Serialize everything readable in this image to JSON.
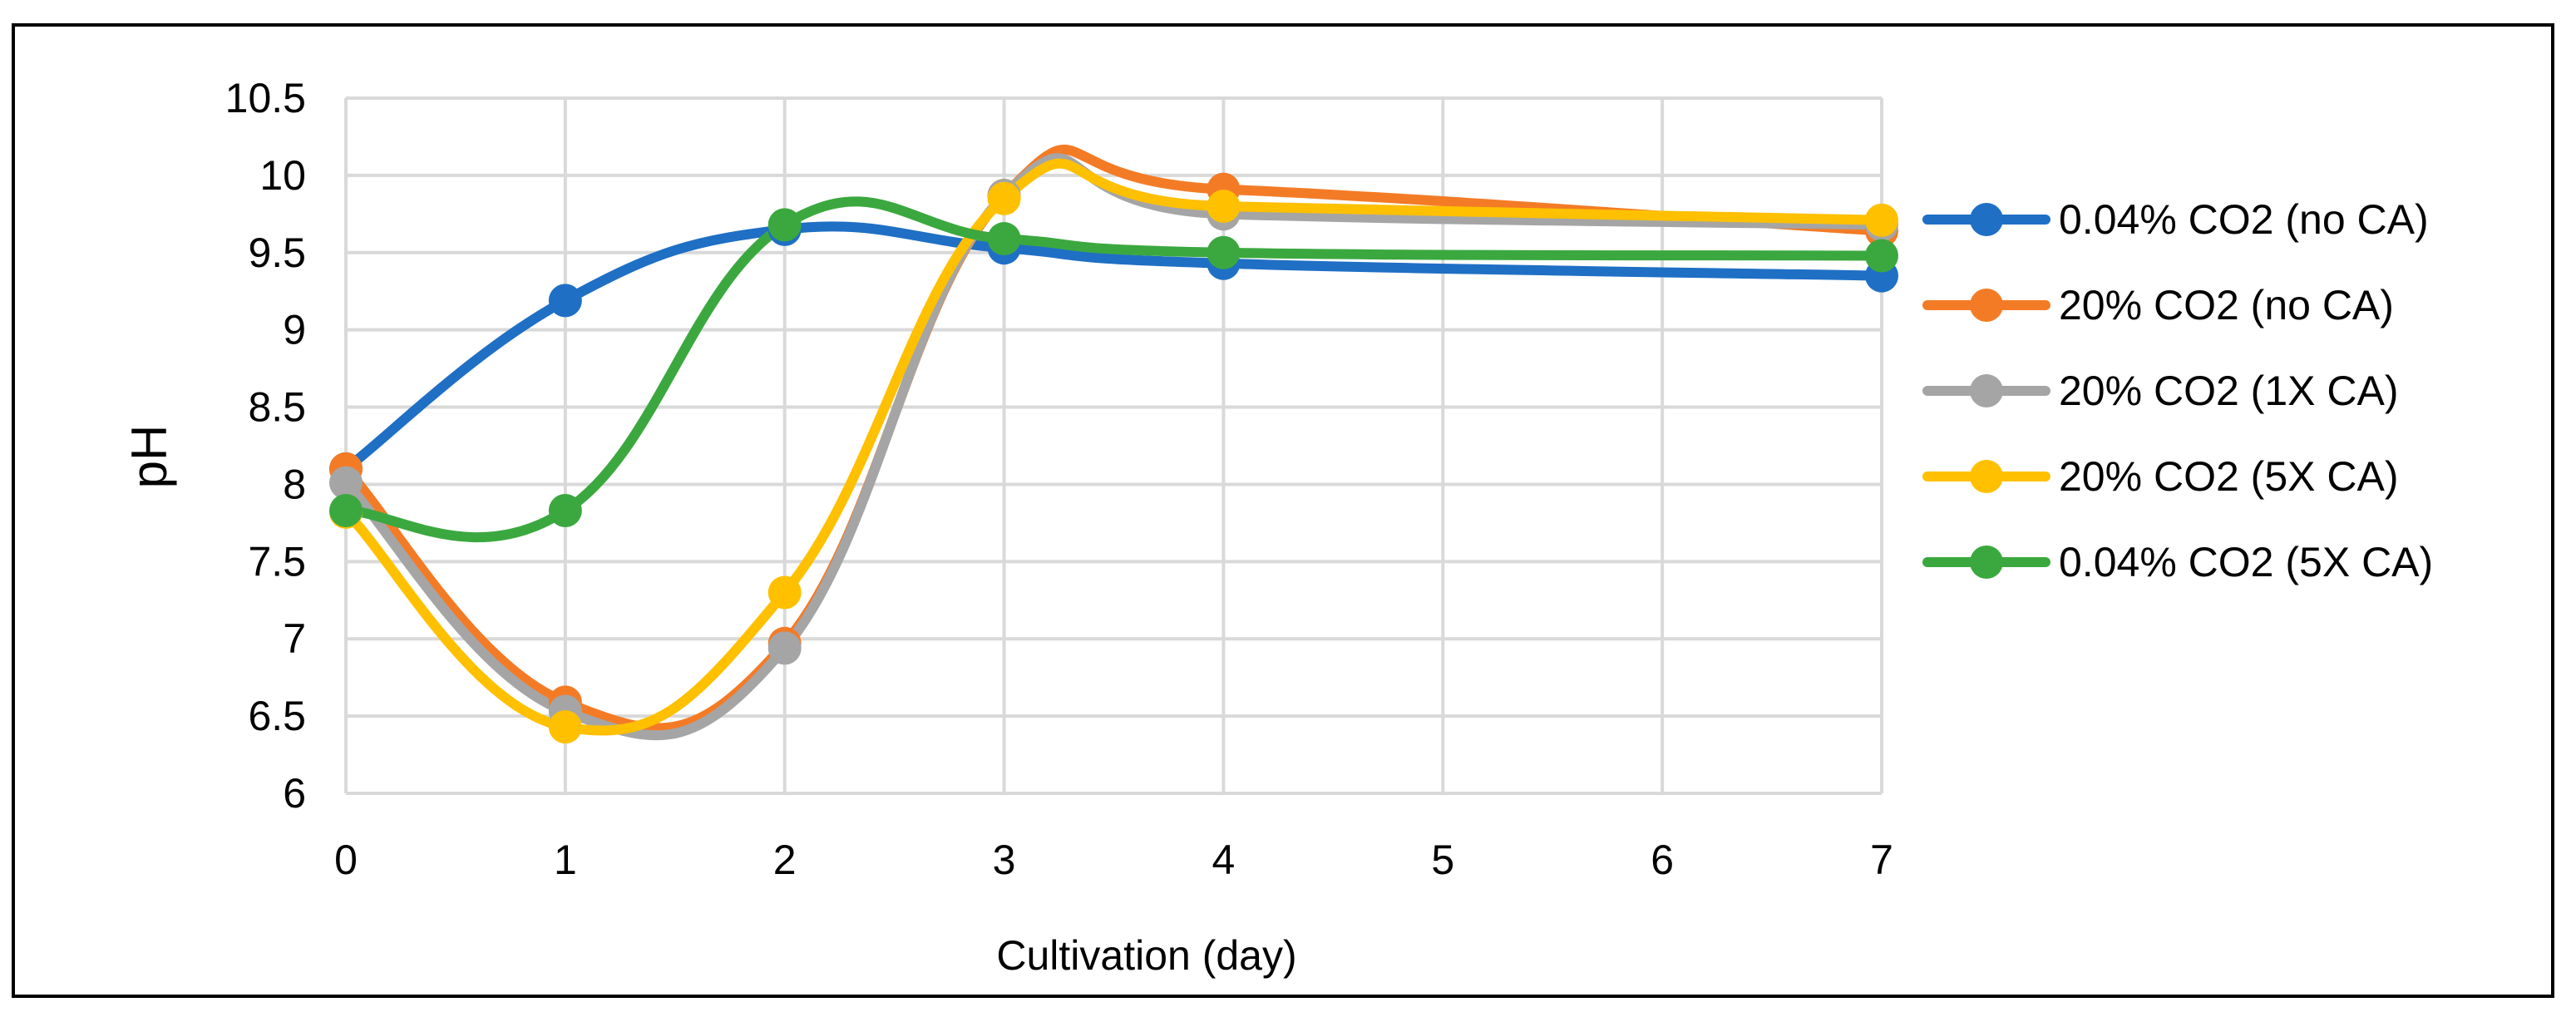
{
  "chart_data": {
    "type": "line",
    "smooth": true,
    "title": "",
    "xlabel": "Cultivation (day)",
    "ylabel": "pH",
    "categories": [
      "0",
      "1",
      "2",
      "3",
      "4",
      "5",
      "6",
      "7"
    ],
    "x": [
      0,
      1,
      2,
      3,
      4,
      5,
      6,
      7
    ],
    "ylim": [
      6,
      10.5
    ],
    "yticks": [
      "6",
      "6.5",
      "7",
      "7.5",
      "8",
      "8.5",
      "9",
      "9.5",
      "10",
      "10.5"
    ],
    "grid": true,
    "legend_position": "right",
    "series": [
      {
        "name": "0.04% CO2 (no CA)",
        "color": "#1f6fc5",
        "x": [
          0,
          1,
          2,
          3,
          4,
          7
        ],
        "values": [
          8.1,
          9.19,
          9.65,
          9.53,
          9.43,
          9.35
        ]
      },
      {
        "name": "20% CO2 (no CA)",
        "color": "#f47b25",
        "x": [
          0,
          1,
          2,
          3,
          4,
          7
        ],
        "values": [
          8.1,
          6.59,
          6.97,
          9.87,
          9.91,
          9.64
        ]
      },
      {
        "name": "20% CO2 (1X CA)",
        "color": "#a5a5a5",
        "x": [
          0,
          1,
          2,
          3,
          4,
          7
        ],
        "values": [
          8.01,
          6.53,
          6.94,
          9.87,
          9.75,
          9.68
        ]
      },
      {
        "name": "20% CO2 (5X CA)",
        "color": "#ffc000",
        "x": [
          0,
          1,
          2,
          3,
          4,
          7
        ],
        "values": [
          7.82,
          6.43,
          7.3,
          9.85,
          9.8,
          9.71
        ]
      },
      {
        "name": "0.04% CO2 (5X CA)",
        "color": "#3ba83f",
        "x": [
          0,
          1,
          2,
          3,
          4,
          7
        ],
        "values": [
          7.83,
          7.83,
          9.68,
          9.59,
          9.5,
          9.48
        ]
      }
    ]
  }
}
